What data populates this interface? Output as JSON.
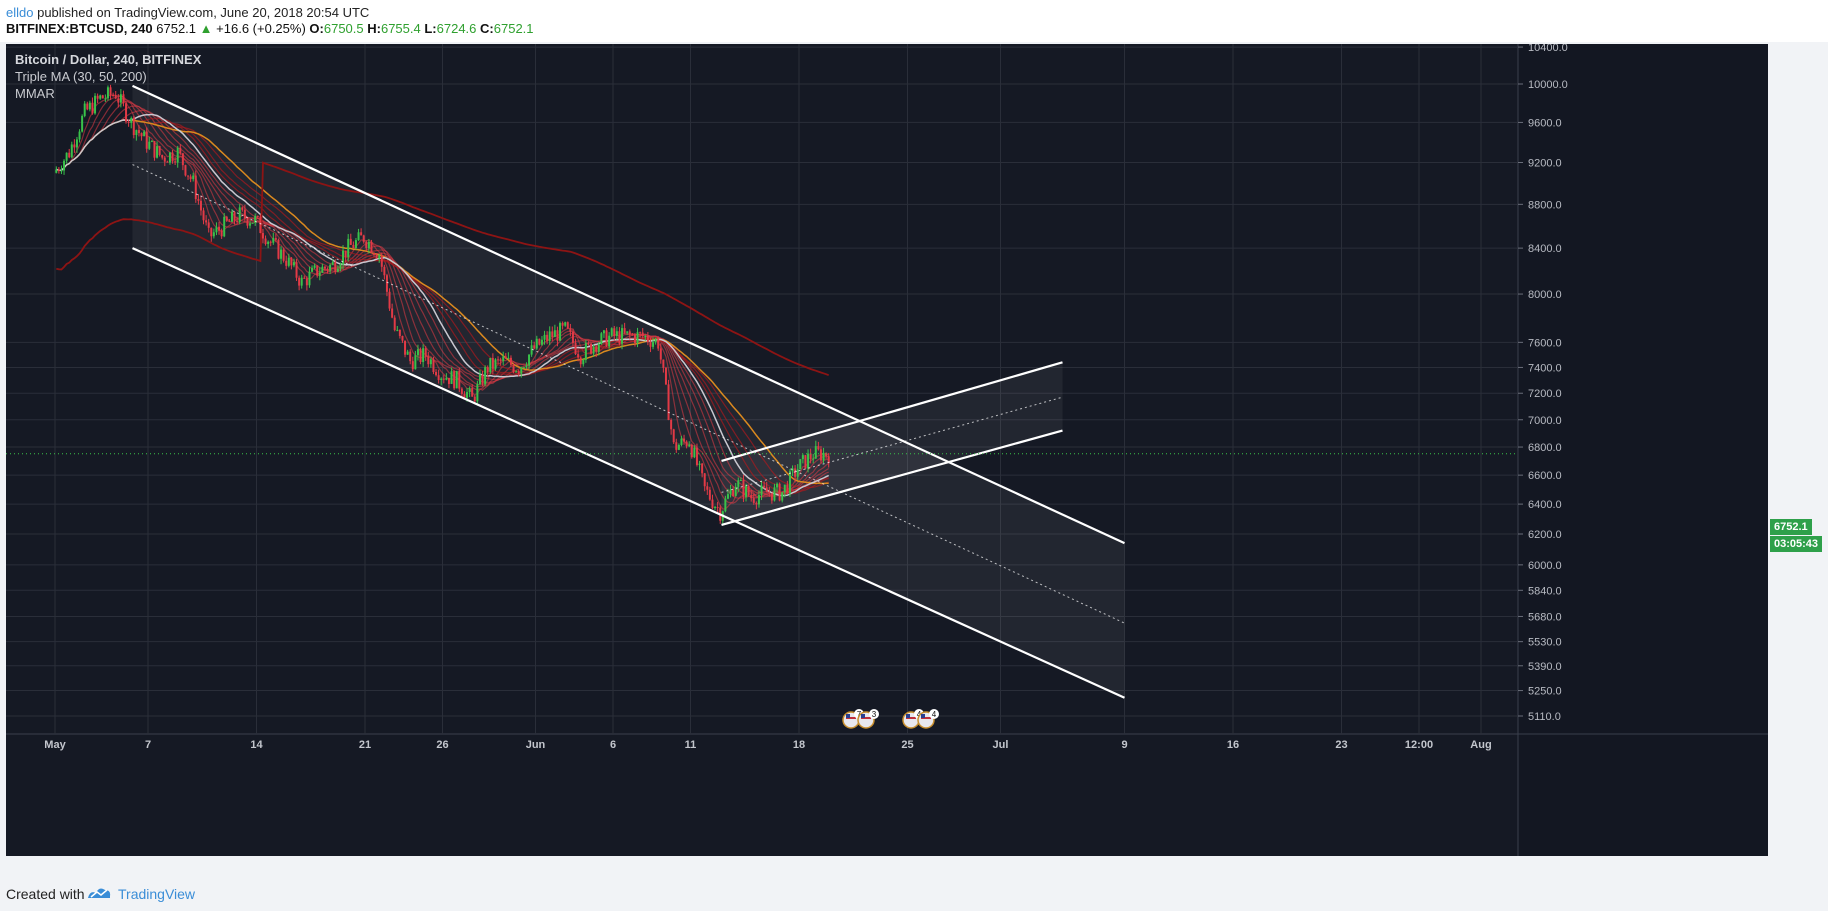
{
  "header": {
    "author": "elldo",
    "published_text": "published on TradingView.com, June 20, 2018 20:54 UTC",
    "symbol": "BITFINEX:BTCUSD, 240",
    "last": "6752.1",
    "change": "+16.6 (+0.25%)",
    "open_label": "O:",
    "open": "6750.5",
    "high_label": "H:",
    "high": "6755.4",
    "low_label": "L:",
    "low": "6724.6",
    "close_label": "C:",
    "close": "6752.1"
  },
  "legend": {
    "title": "Bitcoin / Dollar, 240, BITFINEX",
    "indicator1": "Triple MA (30, 50, 200)",
    "indicator2": "MMAR"
  },
  "price_tags": {
    "last_price": "6752.1",
    "countdown": "03:05:43"
  },
  "events": [
    {
      "flag": "us-flag-icon",
      "count": "7"
    },
    {
      "flag": "us-flag-icon",
      "count": "3"
    },
    {
      "flag": "us-flag-icon",
      "count": "4"
    },
    {
      "flag": "us-flag-icon",
      "count": "4"
    }
  ],
  "footer": {
    "created_with": "Created with",
    "brand": "TradingView"
  },
  "colors": {
    "background": "#151924",
    "grid": "#2a2e39",
    "up": "#39c24a",
    "down": "#e23a46",
    "ma_slow": "#8d1414",
    "ma_mid": "#d98a1f",
    "ma_fast": "#c8c8d0",
    "channel": "#ffffff",
    "price_tag": "#2ea04a"
  },
  "chart_data": {
    "type": "line",
    "title": "Bitcoin / Dollar, 240, BITFINEX",
    "x_tick_labels": [
      "May",
      "7",
      "14",
      "21",
      "26",
      "Jun",
      "6",
      "11",
      "18",
      "25",
      "Jul",
      "9",
      "16",
      "23",
      "12:00",
      "Aug"
    ],
    "y_tick_labels": [
      "10400.0",
      "10000.0",
      "9600.0",
      "9200.0",
      "8800.0",
      "8400.0",
      "8000.0",
      "7600.0",
      "7400.0",
      "7200.0",
      "7000.0",
      "6800.0",
      "6600.0",
      "6400.0",
      "6200.0",
      "6000.0",
      "5840.0",
      "5680.0",
      "5530.0",
      "5390.0",
      "5250.0",
      "5110.0"
    ],
    "y_scale": "log",
    "ylim": [
      5030,
      10560
    ],
    "x_range": [
      "2018-05-01",
      "2018-08-03"
    ],
    "grid": true,
    "series": [
      {
        "type": "candle",
        "x": [
          "2018-05-01",
          "2018-05-02",
          "2018-05-03",
          "2018-05-04",
          "2018-05-05",
          "2018-05-06",
          "2018-05-07",
          "2018-05-08",
          "2018-05-09",
          "2018-05-10",
          "2018-05-11",
          "2018-05-12",
          "2018-05-13",
          "2018-05-14",
          "2018-05-15",
          "2018-05-16",
          "2018-05-17",
          "2018-05-18",
          "2018-05-19",
          "2018-05-20",
          "2018-05-21",
          "2018-05-22",
          "2018-05-23",
          "2018-05-24",
          "2018-05-25",
          "2018-05-26",
          "2018-05-27",
          "2018-05-28",
          "2018-05-29",
          "2018-05-30",
          "2018-05-31",
          "2018-06-01",
          "2018-06-02",
          "2018-06-03",
          "2018-06-04",
          "2018-06-05",
          "2018-06-06",
          "2018-06-07",
          "2018-06-08",
          "2018-06-09",
          "2018-06-10",
          "2018-06-11",
          "2018-06-12",
          "2018-06-13",
          "2018-06-14",
          "2018-06-15",
          "2018-06-16",
          "2018-06-17",
          "2018-06-18",
          "2018-06-19",
          "2018-06-20"
        ],
        "close": [
          9100,
          9300,
          9700,
          9850,
          9900,
          9600,
          9400,
          9250,
          9300,
          9000,
          8500,
          8600,
          8700,
          8650,
          8450,
          8300,
          8100,
          8200,
          8250,
          8400,
          8500,
          8350,
          7700,
          7450,
          7500,
          7350,
          7300,
          7150,
          7400,
          7450,
          7400,
          7550,
          7650,
          7700,
          7500,
          7600,
          7650,
          7650,
          7650,
          7600,
          6800,
          6850,
          6500,
          6350,
          6550,
          6450,
          6480,
          6480,
          6650,
          6750,
          6752.1
        ]
      },
      {
        "name": "",
        "type": "line",
        "values": []
      }
    ],
    "drawings": [
      {
        "type": "descending-channel",
        "upper": [
          [
            "2018-05-06",
            9980
          ],
          [
            "2018-07-09",
            6140
          ]
        ],
        "lower": [
          [
            "2018-05-06",
            8400
          ],
          [
            "2018-07-09",
            5210
          ]
        ],
        "median": [
          [
            "2018-05-06",
            9180
          ],
          [
            "2018-07-09",
            5640
          ]
        ]
      },
      {
        "type": "ascending-channel",
        "upper": [
          [
            "2018-06-13",
            6700
          ],
          [
            "2018-07-05",
            7440
          ]
        ],
        "lower": [
          [
            "2018-06-13",
            6260
          ],
          [
            "2018-07-05",
            6920
          ]
        ],
        "median": [
          [
            "2018-06-13",
            6480
          ],
          [
            "2018-07-05",
            7170
          ]
        ]
      }
    ]
  }
}
